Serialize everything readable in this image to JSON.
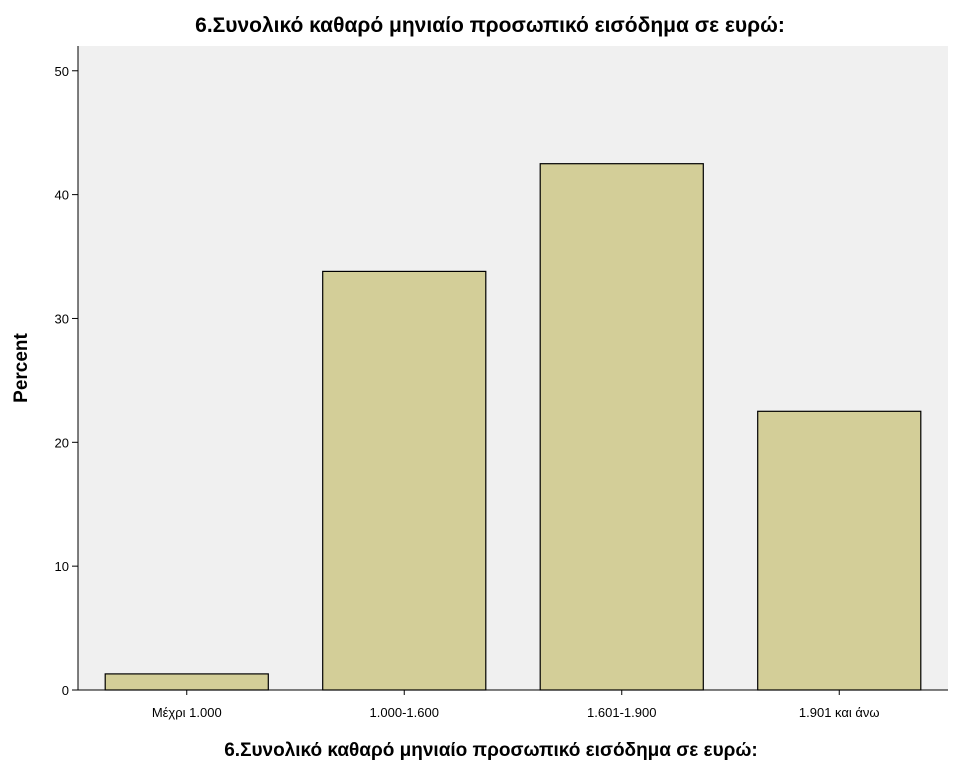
{
  "chart_data": {
    "type": "bar",
    "title": "6.Συνολικό καθαρό μηνιαίο προσωπικό εισόδημα σε ευρώ:",
    "xlabel": "6.Συνολικό καθαρό μηνιαίο προσωπικό εισόδημα σε ευρώ:",
    "ylabel": "Percent",
    "categories": [
      "Μέχρι 1.000",
      "1.000-1.600",
      "1.601-1.900",
      "1.901 και άνω"
    ],
    "values": [
      1.3,
      33.8,
      42.5,
      22.5
    ],
    "ylim": [
      0,
      52
    ],
    "yticks": [
      0,
      10,
      20,
      30,
      40,
      50
    ],
    "grid": false,
    "legend": "none",
    "colors": {
      "bar_fill": "#d3ce98",
      "bar_stroke": "#000000",
      "plot_background": "#f0f0f0",
      "axis": "#000000"
    }
  }
}
